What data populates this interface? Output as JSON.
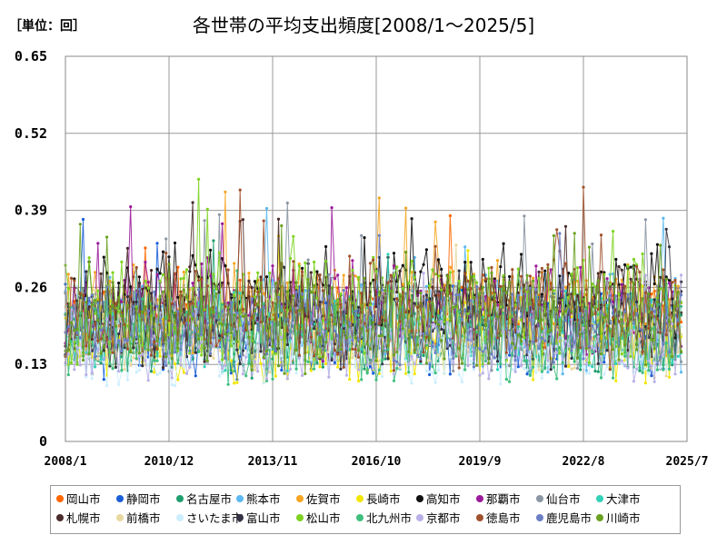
{
  "unit_label": "［単位：回］",
  "chart_data": {
    "type": "line",
    "title": "各世帯の平均支出頻度[2008/1～2025/5]",
    "xlabel": "",
    "ylabel": "",
    "x_start": "2008/1",
    "x_end": "2025/7",
    "x_ticks": [
      "2008/1",
      "2010/12",
      "2013/11",
      "2016/10",
      "2019/9",
      "2022/8",
      "2025/7"
    ],
    "ylim": [
      0,
      0.65
    ],
    "y_ticks": [
      "0",
      "0.13",
      "0.26",
      "0.39",
      "0.52",
      "0.65"
    ],
    "grid": true,
    "legend_position": "bottom",
    "series": [
      {
        "name": "岡山市",
        "color": "#ff6600",
        "base": 0.21,
        "amp": 0.06,
        "seed": 11
      },
      {
        "name": "静岡市",
        "color": "#1a5fd8",
        "base": 0.19,
        "amp": 0.07,
        "seed": 23
      },
      {
        "name": "名古屋市",
        "color": "#1f9e6e",
        "base": 0.18,
        "amp": 0.06,
        "seed": 37
      },
      {
        "name": "熊本市",
        "color": "#5bb8f0",
        "base": 0.2,
        "amp": 0.07,
        "seed": 41
      },
      {
        "name": "佐賀市",
        "color": "#f5a623",
        "base": 0.22,
        "amp": 0.07,
        "seed": 53
      },
      {
        "name": "長崎市",
        "color": "#f2e600",
        "base": 0.17,
        "amp": 0.06,
        "seed": 67
      },
      {
        "name": "高知市",
        "color": "#111111",
        "base": 0.24,
        "amp": 0.08,
        "seed": 71
      },
      {
        "name": "那覇市",
        "color": "#9b1a9b",
        "base": 0.22,
        "amp": 0.07,
        "seed": 83
      },
      {
        "name": "仙台市",
        "color": "#8a96a3",
        "base": 0.2,
        "amp": 0.07,
        "seed": 97
      },
      {
        "name": "大津市",
        "color": "#33d1b8",
        "base": 0.19,
        "amp": 0.06,
        "seed": 101
      },
      {
        "name": "札幌市",
        "color": "#4a2b2b",
        "base": 0.21,
        "amp": 0.07,
        "seed": 113
      },
      {
        "name": "前橋市",
        "color": "#e8d9a0",
        "base": 0.18,
        "amp": 0.06,
        "seed": 127
      },
      {
        "name": "さいたま市",
        "color": "#cceeff",
        "base": 0.15,
        "amp": 0.05,
        "seed": 131
      },
      {
        "name": "富山市",
        "color": "#333344",
        "base": 0.19,
        "amp": 0.06,
        "seed": 149
      },
      {
        "name": "松山市",
        "color": "#7ed321",
        "base": 0.22,
        "amp": 0.08,
        "seed": 151
      },
      {
        "name": "北九州市",
        "color": "#3fbf7f",
        "base": 0.17,
        "amp": 0.06,
        "seed": 163
      },
      {
        "name": "京都市",
        "color": "#b8b0e6",
        "base": 0.16,
        "amp": 0.05,
        "seed": 173
      },
      {
        "name": "徳島市",
        "color": "#a0522d",
        "base": 0.22,
        "amp": 0.08,
        "seed": 181
      },
      {
        "name": "鹿児島市",
        "color": "#6b7fc4",
        "base": 0.2,
        "amp": 0.06,
        "seed": 191
      },
      {
        "name": "川崎市",
        "color": "#6aa121",
        "base": 0.2,
        "amp": 0.07,
        "seed": 199
      }
    ]
  }
}
